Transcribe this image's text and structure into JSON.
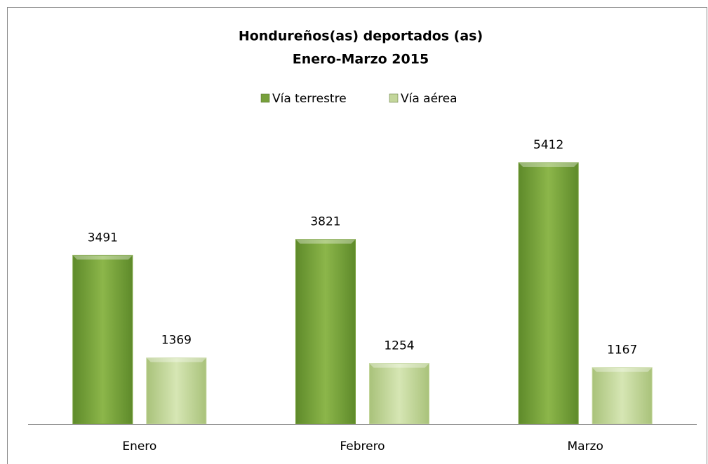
{
  "chart_data": {
    "type": "bar",
    "title": "Hondureños(as) deportados (as)",
    "subtitle": "Enero-Marzo 2015",
    "categories": [
      "Enero",
      "Febrero",
      "Marzo"
    ],
    "series": [
      {
        "name": "Vía terrestre",
        "color": "#77a03b",
        "values": [
          3491,
          3821,
          5412
        ]
      },
      {
        "name": "Vía aérea",
        "color": "#c3d69b",
        "values": [
          1369,
          1254,
          1167
        ]
      }
    ],
    "legend": "top"
  }
}
